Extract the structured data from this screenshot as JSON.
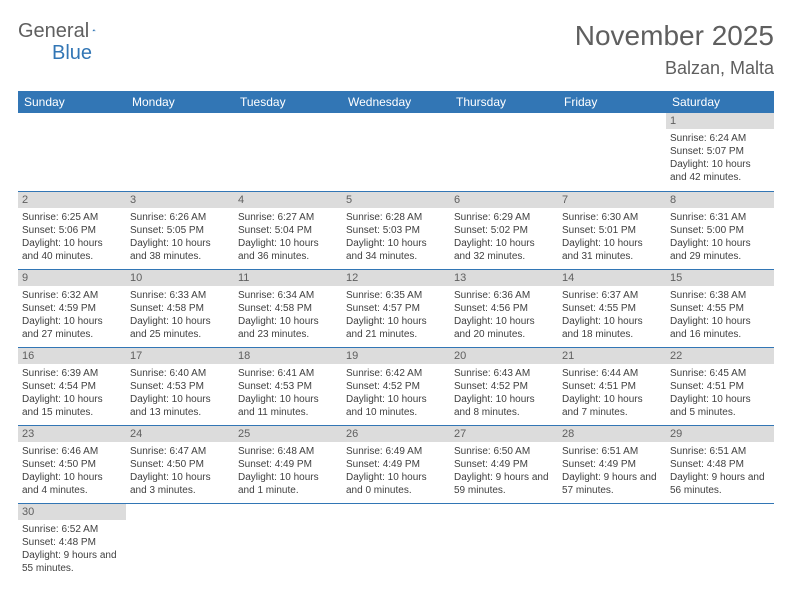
{
  "logo": {
    "text1": "General",
    "text2": "Blue"
  },
  "title": "November 2025",
  "location": "Balzan, Malta",
  "colors": {
    "header_bg": "#3276b5",
    "header_text": "#ffffff",
    "daynum_bg": "#dcdcdc",
    "daynum_text": "#5f5f5f",
    "body_text": "#404040",
    "title_text": "#5f5f5f",
    "border": "#3276b5"
  },
  "daynames": [
    "Sunday",
    "Monday",
    "Tuesday",
    "Wednesday",
    "Thursday",
    "Friday",
    "Saturday"
  ],
  "weeks": [
    [
      null,
      null,
      null,
      null,
      null,
      null,
      {
        "num": "1",
        "sunrise": "6:24 AM",
        "sunset": "5:07 PM",
        "daylight": "10 hours and 42 minutes."
      }
    ],
    [
      {
        "num": "2",
        "sunrise": "6:25 AM",
        "sunset": "5:06 PM",
        "daylight": "10 hours and 40 minutes."
      },
      {
        "num": "3",
        "sunrise": "6:26 AM",
        "sunset": "5:05 PM",
        "daylight": "10 hours and 38 minutes."
      },
      {
        "num": "4",
        "sunrise": "6:27 AM",
        "sunset": "5:04 PM",
        "daylight": "10 hours and 36 minutes."
      },
      {
        "num": "5",
        "sunrise": "6:28 AM",
        "sunset": "5:03 PM",
        "daylight": "10 hours and 34 minutes."
      },
      {
        "num": "6",
        "sunrise": "6:29 AM",
        "sunset": "5:02 PM",
        "daylight": "10 hours and 32 minutes."
      },
      {
        "num": "7",
        "sunrise": "6:30 AM",
        "sunset": "5:01 PM",
        "daylight": "10 hours and 31 minutes."
      },
      {
        "num": "8",
        "sunrise": "6:31 AM",
        "sunset": "5:00 PM",
        "daylight": "10 hours and 29 minutes."
      }
    ],
    [
      {
        "num": "9",
        "sunrise": "6:32 AM",
        "sunset": "4:59 PM",
        "daylight": "10 hours and 27 minutes."
      },
      {
        "num": "10",
        "sunrise": "6:33 AM",
        "sunset": "4:58 PM",
        "daylight": "10 hours and 25 minutes."
      },
      {
        "num": "11",
        "sunrise": "6:34 AM",
        "sunset": "4:58 PM",
        "daylight": "10 hours and 23 minutes."
      },
      {
        "num": "12",
        "sunrise": "6:35 AM",
        "sunset": "4:57 PM",
        "daylight": "10 hours and 21 minutes."
      },
      {
        "num": "13",
        "sunrise": "6:36 AM",
        "sunset": "4:56 PM",
        "daylight": "10 hours and 20 minutes."
      },
      {
        "num": "14",
        "sunrise": "6:37 AM",
        "sunset": "4:55 PM",
        "daylight": "10 hours and 18 minutes."
      },
      {
        "num": "15",
        "sunrise": "6:38 AM",
        "sunset": "4:55 PM",
        "daylight": "10 hours and 16 minutes."
      }
    ],
    [
      {
        "num": "16",
        "sunrise": "6:39 AM",
        "sunset": "4:54 PM",
        "daylight": "10 hours and 15 minutes."
      },
      {
        "num": "17",
        "sunrise": "6:40 AM",
        "sunset": "4:53 PM",
        "daylight": "10 hours and 13 minutes."
      },
      {
        "num": "18",
        "sunrise": "6:41 AM",
        "sunset": "4:53 PM",
        "daylight": "10 hours and 11 minutes."
      },
      {
        "num": "19",
        "sunrise": "6:42 AM",
        "sunset": "4:52 PM",
        "daylight": "10 hours and 10 minutes."
      },
      {
        "num": "20",
        "sunrise": "6:43 AM",
        "sunset": "4:52 PM",
        "daylight": "10 hours and 8 minutes."
      },
      {
        "num": "21",
        "sunrise": "6:44 AM",
        "sunset": "4:51 PM",
        "daylight": "10 hours and 7 minutes."
      },
      {
        "num": "22",
        "sunrise": "6:45 AM",
        "sunset": "4:51 PM",
        "daylight": "10 hours and 5 minutes."
      }
    ],
    [
      {
        "num": "23",
        "sunrise": "6:46 AM",
        "sunset": "4:50 PM",
        "daylight": "10 hours and 4 minutes."
      },
      {
        "num": "24",
        "sunrise": "6:47 AM",
        "sunset": "4:50 PM",
        "daylight": "10 hours and 3 minutes."
      },
      {
        "num": "25",
        "sunrise": "6:48 AM",
        "sunset": "4:49 PM",
        "daylight": "10 hours and 1 minute."
      },
      {
        "num": "26",
        "sunrise": "6:49 AM",
        "sunset": "4:49 PM",
        "daylight": "10 hours and 0 minutes."
      },
      {
        "num": "27",
        "sunrise": "6:50 AM",
        "sunset": "4:49 PM",
        "daylight": "9 hours and 59 minutes."
      },
      {
        "num": "28",
        "sunrise": "6:51 AM",
        "sunset": "4:49 PM",
        "daylight": "9 hours and 57 minutes."
      },
      {
        "num": "29",
        "sunrise": "6:51 AM",
        "sunset": "4:48 PM",
        "daylight": "9 hours and 56 minutes."
      }
    ],
    [
      {
        "num": "30",
        "sunrise": "6:52 AM",
        "sunset": "4:48 PM",
        "daylight": "9 hours and 55 minutes."
      },
      null,
      null,
      null,
      null,
      null,
      null
    ]
  ],
  "labels": {
    "sunrise_prefix": "Sunrise: ",
    "sunset_prefix": "Sunset: ",
    "daylight_prefix": "Daylight: "
  }
}
